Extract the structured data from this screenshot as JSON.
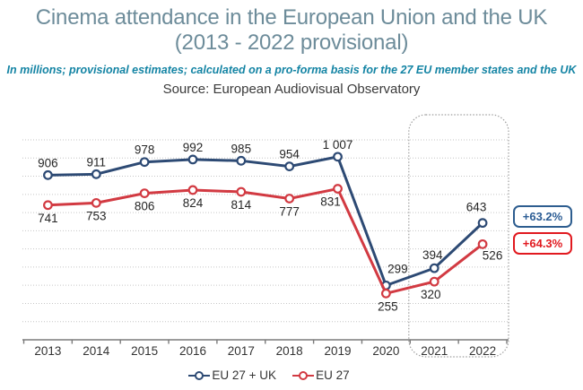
{
  "header": {
    "title_line1": "Cinema attendance in the European Union and the UK",
    "title_line2": "(2013 - 2022 provisional)",
    "subtitle": "In millions; provisional estimates; calculated on a pro-forma basis for the 27 EU member states and the UK",
    "source": "Source: European Audiovisual Observatory"
  },
  "chart_data": {
    "type": "line",
    "categories": [
      "2013",
      "2014",
      "2015",
      "2016",
      "2017",
      "2018",
      "2019",
      "2020",
      "2021",
      "2022"
    ],
    "series": [
      {
        "name": "EU 27 + UK",
        "color": "#2d4a74",
        "values": [
          906,
          911,
          978,
          992,
          985,
          954,
          1007,
          299,
          394,
          643
        ],
        "labels": [
          "906",
          "911",
          "978",
          "992",
          "985",
          "954",
          "1 007",
          "299",
          "394",
          "643"
        ],
        "label_position": "above"
      },
      {
        "name": "EU 27",
        "color": "#d23a42",
        "values": [
          741,
          753,
          806,
          824,
          814,
          777,
          831,
          255,
          320,
          526
        ],
        "labels": [
          "741",
          "753",
          "806",
          "824",
          "814",
          "777",
          "831",
          "255",
          "320",
          "526"
        ],
        "label_position": "below"
      }
    ],
    "ylim": [
      0,
      1100
    ],
    "grid": "horizontal-dotted-every-100",
    "legend_position": "bottom",
    "marker": "open-circle",
    "highlight_region": {
      "categories": [
        "2021",
        "2022"
      ],
      "style": "dotted-rounded-rectangle"
    }
  },
  "badges": [
    {
      "label": "+63.2%",
      "color": "#2b5c94",
      "series": "EU 27 + UK"
    },
    {
      "label": "+64.3%",
      "color": "#e1191f",
      "series": "EU 27"
    }
  ]
}
